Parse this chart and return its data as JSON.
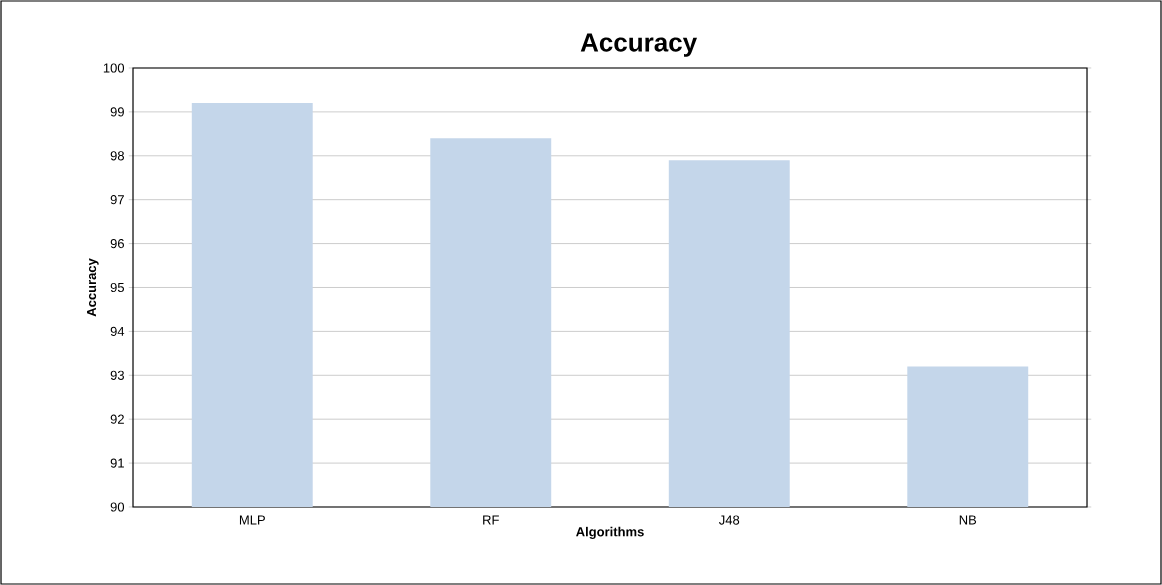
{
  "chart_data": {
    "type": "bar",
    "title": "Accuracy",
    "xlabel": "Algorithms",
    "ylabel": "Accuracy",
    "categories": [
      "MLP",
      "RF",
      "J48",
      "NB"
    ],
    "values": [
      99.2,
      98.4,
      97.9,
      93.2
    ],
    "color": "#c4d6ea",
    "ylim": [
      90,
      100
    ],
    "yticks": [
      90,
      91,
      92,
      93,
      94,
      95,
      96,
      97,
      98,
      99,
      100
    ],
    "grid": "y"
  }
}
